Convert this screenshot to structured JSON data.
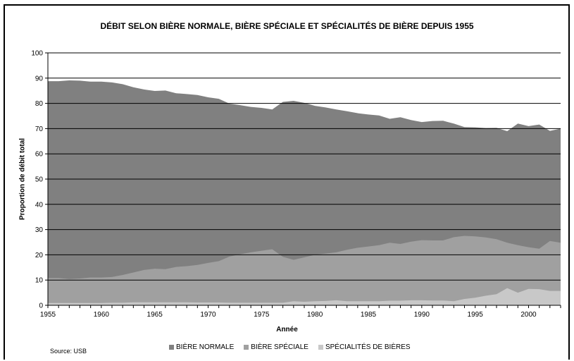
{
  "chart_data": {
    "type": "area",
    "stacked": false,
    "title": "DÉBIT SELON BIÈRE NORMALE, BIÈRE SPÉCIALE ET SPÉCIALITÉS DE BIÈRE DEPUIS 1955",
    "xlabel": "Année",
    "ylabel": "Proportion de débit total",
    "xlim": [
      1955,
      2003
    ],
    "ylim": [
      0,
      100
    ],
    "yticks": [
      0,
      10,
      20,
      30,
      40,
      50,
      60,
      70,
      80,
      90,
      100
    ],
    "xticks": [
      1955,
      1960,
      1965,
      1970,
      1975,
      1980,
      1985,
      1990,
      1995,
      2000
    ],
    "grid": "horizontal",
    "legend_position": "bottom",
    "source": "Source: USB",
    "x": [
      1955,
      1956,
      1957,
      1958,
      1959,
      1960,
      1961,
      1962,
      1963,
      1964,
      1965,
      1966,
      1967,
      1968,
      1969,
      1970,
      1971,
      1972,
      1973,
      1974,
      1975,
      1976,
      1977,
      1978,
      1979,
      1980,
      1981,
      1982,
      1983,
      1984,
      1985,
      1986,
      1987,
      1988,
      1989,
      1990,
      1991,
      1992,
      1993,
      1994,
      1995,
      1996,
      1997,
      1998,
      1999,
      2000,
      2001,
      2002,
      2003
    ],
    "series": [
      {
        "name": "BIÈRE NORMALE",
        "color": "#808080",
        "values": [
          88.8,
          88.8,
          89.1,
          89.0,
          88.6,
          88.6,
          88.3,
          87.6,
          86.4,
          85.5,
          84.9,
          85.1,
          84.0,
          83.7,
          83.3,
          82.4,
          81.8,
          79.9,
          79.3,
          78.6,
          78.2,
          77.6,
          80.6,
          81.0,
          80.2,
          79.0,
          78.4,
          77.6,
          76.9,
          76.1,
          75.6,
          75.2,
          73.9,
          74.5,
          73.4,
          72.6,
          73.0,
          73.1,
          72.0,
          70.6,
          70.5,
          70.2,
          70.3,
          69.0,
          72.0,
          71.0,
          71.6,
          69.1,
          70.0
        ]
      },
      {
        "name": "BIÈRE SPÉCIALE",
        "color": "#a0a0a0",
        "values": [
          10.8,
          10.8,
          10.4,
          10.6,
          11.0,
          11.0,
          11.2,
          12.0,
          13.0,
          14.0,
          14.5,
          14.3,
          15.2,
          15.5,
          16.0,
          16.8,
          17.5,
          19.3,
          20.2,
          21.0,
          21.6,
          22.2,
          19.2,
          18.0,
          19.0,
          20.0,
          20.5,
          21.0,
          22.0,
          22.8,
          23.3,
          23.8,
          24.8,
          24.3,
          25.2,
          25.8,
          25.7,
          25.7,
          27.0,
          27.5,
          27.3,
          26.9,
          26.2,
          24.8,
          23.8,
          23.0,
          22.4,
          25.5,
          24.8
        ]
      },
      {
        "name": "SPÉCIALITÉS DE BIÈRES",
        "color": "#c8c8c8",
        "values": [
          0.9,
          0.9,
          0.9,
          0.9,
          0.9,
          0.9,
          1.0,
          1.0,
          1.2,
          1.2,
          1.2,
          1.2,
          1.2,
          1.2,
          1.1,
          1.1,
          1.1,
          1.0,
          1.0,
          1.0,
          1.0,
          1.0,
          1.0,
          1.6,
          1.4,
          1.6,
          1.7,
          2.0,
          1.6,
          1.6,
          1.6,
          1.6,
          1.8,
          1.8,
          2.0,
          2.0,
          1.9,
          1.9,
          1.6,
          2.5,
          3.0,
          3.8,
          4.4,
          6.8,
          5.0,
          6.5,
          6.4,
          5.7,
          5.7
        ]
      }
    ]
  }
}
